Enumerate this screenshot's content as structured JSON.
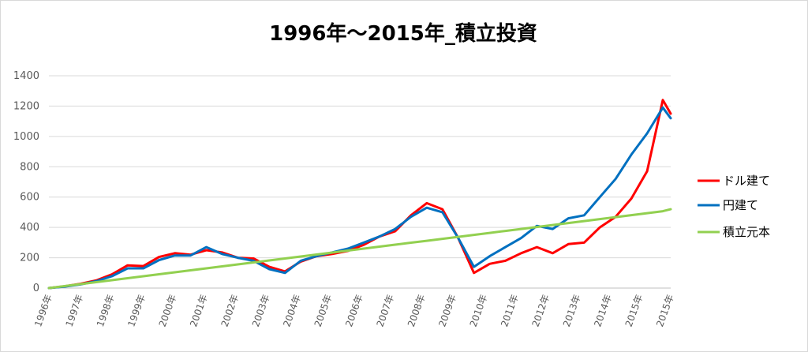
{
  "chart_data": {
    "type": "line",
    "title": "1996年～2015年_積立投資",
    "xlabel": "",
    "ylabel": "",
    "ylim": [
      0,
      1400
    ],
    "yticks": [
      0,
      200,
      400,
      600,
      800,
      1000,
      1200,
      1400
    ],
    "x_tick_labels": [
      "1996年",
      "1997年",
      "1998年",
      "1999年",
      "2000年",
      "2001年",
      "2002年",
      "2003年",
      "2004年",
      "2005年",
      "2006年",
      "2007年",
      "2008年",
      "2009年",
      "2010年",
      "2011年",
      "2012年",
      "2013年",
      "2014年",
      "2015年",
      "2015年"
    ],
    "grid": true,
    "legend_position": "right",
    "x": [
      1996.0,
      1996.5,
      1997.0,
      1997.5,
      1998.0,
      1998.5,
      1999.0,
      1999.5,
      2000.0,
      2000.5,
      2001.0,
      2001.5,
      2002.0,
      2002.5,
      2003.0,
      2003.5,
      2004.0,
      2004.5,
      2005.0,
      2005.5,
      2006.0,
      2006.5,
      2007.0,
      2007.5,
      2008.0,
      2008.5,
      2009.0,
      2009.5,
      2010.0,
      2010.5,
      2011.0,
      2011.5,
      2012.0,
      2012.5,
      2013.0,
      2013.5,
      2014.0,
      2014.5,
      2015.0,
      2015.5,
      2015.75
    ],
    "series": [
      {
        "name": "ドル建て",
        "color": "#ff0000",
        "values": [
          0,
          12,
          28,
          50,
          90,
          150,
          145,
          205,
          230,
          220,
          250,
          235,
          200,
          195,
          140,
          110,
          175,
          210,
          225,
          245,
          285,
          340,
          375,
          480,
          560,
          520,
          330,
          100,
          160,
          180,
          230,
          270,
          230,
          290,
          300,
          400,
          470,
          590,
          770,
          1240,
          1150
        ]
      },
      {
        "name": "円建て",
        "color": "#0070c0",
        "values": [
          0,
          10,
          24,
          45,
          78,
          130,
          130,
          185,
          215,
          215,
          270,
          225,
          200,
          180,
          125,
          100,
          180,
          210,
          235,
          260,
          300,
          340,
          390,
          470,
          530,
          500,
          330,
          140,
          210,
          270,
          330,
          410,
          390,
          460,
          480,
          600,
          720,
          880,
          1020,
          1190,
          1120
        ]
      },
      {
        "name": "積立元本",
        "color": "#92d050",
        "values": [
          0,
          13,
          26,
          39,
          52,
          65,
          78,
          91,
          104,
          117,
          130,
          143,
          156,
          169,
          182,
          195,
          208,
          221,
          234,
          247,
          260,
          273,
          286,
          299,
          312,
          325,
          338,
          351,
          364,
          377,
          390,
          403,
          416,
          429,
          442,
          455,
          468,
          481,
          494,
          507,
          520
        ]
      }
    ]
  }
}
